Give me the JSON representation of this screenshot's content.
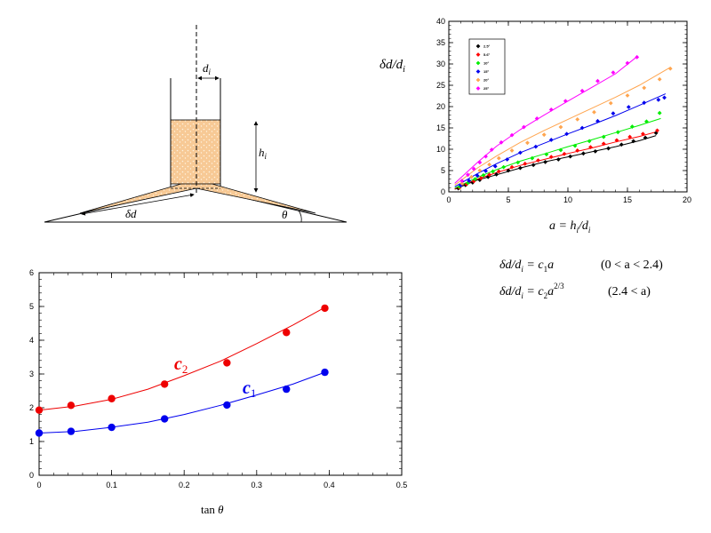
{
  "diagram": {
    "label_di": "d",
    "label_di_sub": "i",
    "label_hi": "h",
    "label_hi_sub": "i",
    "label_delta_d": "δd",
    "label_theta": "θ",
    "colors": {
      "fill": "#f7c995",
      "outline": "#000000",
      "axis": "#000000"
    }
  },
  "chart_data": [
    {
      "id": "right-chart",
      "type": "scatter",
      "ylabel_main": "δd/d",
      "ylabel_sub": "i",
      "xlabel_main": "a = h",
      "xlabel_sub1": "i",
      "xlabel_mid": "/d",
      "xlabel_sub2": "i",
      "xlim": [
        0,
        20
      ],
      "ylim": [
        0,
        40
      ],
      "xticks": [
        0,
        5,
        10,
        15,
        20
      ],
      "yticks": [
        0,
        5,
        10,
        15,
        20,
        25,
        30,
        35,
        40
      ],
      "legend_position": "top-left",
      "series": [
        {
          "name": "2.5°",
          "color": "#000000",
          "x": [
            0.8,
            1.4,
            2.0,
            2.6,
            3.3,
            4.0,
            5.0,
            6.0,
            7.1,
            8.1,
            9.2,
            10.2,
            11.3,
            12.3,
            13.4,
            14.5,
            15.5,
            16.5,
            17.4
          ],
          "y": [
            0.8,
            1.6,
            2.2,
            2.8,
            3.5,
            4.1,
            5.0,
            5.6,
            6.3,
            7.0,
            7.6,
            8.3,
            9.0,
            9.5,
            10.2,
            11.1,
            11.9,
            12.7,
            13.8
          ],
          "fit": [
            [
              0.5,
              0.6
            ],
            [
              2.4,
              2.8
            ],
            [
              4,
              4.0
            ],
            [
              6,
              5.6
            ],
            [
              8,
              7.0
            ],
            [
              10,
              8.2
            ],
            [
              12,
              9.4
            ],
            [
              14,
              10.6
            ],
            [
              16,
              12.0
            ],
            [
              17.4,
              13.2
            ]
          ]
        },
        {
          "name": "5.6°",
          "color": "#ff0000",
          "x": [
            0.9,
            1.5,
            2.1,
            2.7,
            3.4,
            4.2,
            5.3,
            6.4,
            7.5,
            8.6,
            9.7,
            10.8,
            11.9,
            13.0,
            14.1,
            15.2,
            16.3,
            17.5
          ],
          "y": [
            1.0,
            1.8,
            2.5,
            3.2,
            4.0,
            4.8,
            5.8,
            6.6,
            7.4,
            8.2,
            8.9,
            9.7,
            10.5,
            11.3,
            12.1,
            12.9,
            13.6,
            14.4
          ],
          "fit": [
            [
              0.5,
              0.7
            ],
            [
              2.4,
              3.0
            ],
            [
              4,
              4.5
            ],
            [
              6,
              6.2
            ],
            [
              8,
              7.6
            ],
            [
              10,
              9.0
            ],
            [
              12,
              10.3
            ],
            [
              14,
              11.7
            ],
            [
              16,
              13.0
            ],
            [
              17.6,
              14.2
            ]
          ]
        },
        {
          "name": "10°",
          "color": "#00ee00",
          "x": [
            0.9,
            1.6,
            2.2,
            2.9,
            3.7,
            4.6,
            5.8,
            7.0,
            8.2,
            9.4,
            10.6,
            11.8,
            13.0,
            14.2,
            15.4,
            16.6,
            17.7
          ],
          "y": [
            1.2,
            2.1,
            3.0,
            3.9,
            4.8,
            5.8,
            6.9,
            7.9,
            8.8,
            9.8,
            10.8,
            11.9,
            12.9,
            14.0,
            15.3,
            16.5,
            18.5
          ],
          "fit": [
            [
              0.5,
              0.9
            ],
            [
              2.4,
              3.4
            ],
            [
              4,
              5.2
            ],
            [
              6,
              7.2
            ],
            [
              8,
              8.9
            ],
            [
              10,
              10.6
            ],
            [
              12,
              12.2
            ],
            [
              14,
              13.9
            ],
            [
              16,
              15.6
            ],
            [
              17.8,
              17.2
            ]
          ]
        },
        {
          "name": "15°",
          "color": "#0000ee",
          "x": [
            1.0,
            1.7,
            2.4,
            3.1,
            3.9,
            4.9,
            6.0,
            7.3,
            8.6,
            9.9,
            11.2,
            12.5,
            13.8,
            15.1,
            16.4,
            17.6,
            18.1
          ],
          "y": [
            1.5,
            2.6,
            3.8,
            4.9,
            6.0,
            7.6,
            9.2,
            10.6,
            12.2,
            13.6,
            15.0,
            16.6,
            18.4,
            19.9,
            20.9,
            21.6,
            22.1
          ],
          "fit": [
            [
              0.5,
              1.2
            ],
            [
              2.4,
              4.3
            ],
            [
              4,
              6.6
            ],
            [
              6,
              9.2
            ],
            [
              8,
              11.4
            ],
            [
              10,
              13.6
            ],
            [
              12,
              15.7
            ],
            [
              14,
              17.9
            ],
            [
              16,
              20.3
            ],
            [
              18.2,
              23.0
            ]
          ]
        },
        {
          "name": "20°",
          "color": "#ffa54f",
          "x": [
            1.1,
            1.9,
            2.6,
            3.4,
            4.2,
            5.3,
            6.6,
            8.0,
            9.4,
            10.8,
            12.2,
            13.6,
            15.0,
            16.4,
            17.7,
            18.6
          ],
          "y": [
            2.0,
            3.5,
            5.0,
            6.4,
            7.9,
            9.7,
            11.5,
            13.4,
            15.2,
            17.0,
            18.7,
            20.8,
            22.6,
            24.4,
            26.4,
            28.9
          ],
          "fit": [
            [
              0.5,
              1.6
            ],
            [
              2.4,
              5.6
            ],
            [
              4,
              8.4
            ],
            [
              6,
              11.6
            ],
            [
              8,
              14.4
            ],
            [
              10,
              17.0
            ],
            [
              12,
              19.6
            ],
            [
              14,
              22.2
            ],
            [
              16,
              25.0
            ],
            [
              18.6,
              29.2
            ]
          ]
        },
        {
          "name": "25°",
          "color": "#ff00ff",
          "x": [
            1.1,
            1.6,
            2.1,
            2.6,
            3.1,
            3.6,
            4.4,
            5.3,
            6.3,
            7.4,
            8.6,
            9.8,
            11.2,
            12.5,
            13.8,
            15.0,
            15.8
          ],
          "y": [
            2.6,
            4.0,
            5.4,
            6.9,
            8.3,
            9.9,
            11.6,
            13.3,
            15.2,
            17.2,
            19.3,
            21.3,
            23.7,
            26.0,
            28.0,
            30.2,
            31.6
          ],
          "fit": [
            [
              0.5,
              2.0
            ],
            [
              2.4,
              6.9
            ],
            [
              4,
              10.7
            ],
            [
              6,
              14.6
            ],
            [
              8,
              18.0
            ],
            [
              10,
              21.3
            ],
            [
              12,
              24.5
            ],
            [
              14,
              27.7
            ],
            [
              15.8,
              31.7
            ]
          ]
        }
      ]
    },
    {
      "id": "left-chart",
      "type": "scatter",
      "xlabel_main": "tan ",
      "xlabel_theta": "θ",
      "xlim": [
        0,
        0.5
      ],
      "ylim": [
        0,
        6
      ],
      "xticks": [
        0,
        0.1,
        0.2,
        0.3,
        0.4,
        0.5
      ],
      "yticks": [
        0,
        1,
        2,
        3,
        4,
        5,
        6
      ],
      "series": [
        {
          "name": "c",
          "sub": "2",
          "color": "#ee0000",
          "x": [
            0,
            0.044,
            0.1,
            0.173,
            0.259,
            0.341,
            0.394
          ],
          "y": [
            1.93,
            2.07,
            2.27,
            2.7,
            3.33,
            4.23,
            4.95
          ],
          "fit": [
            [
              0,
              1.93
            ],
            [
              0.05,
              2.05
            ],
            [
              0.1,
              2.25
            ],
            [
              0.15,
              2.55
            ],
            [
              0.2,
              2.95
            ],
            [
              0.25,
              3.38
            ],
            [
              0.3,
              3.9
            ],
            [
              0.35,
              4.45
            ],
            [
              0.394,
              4.97
            ]
          ]
        },
        {
          "name": "c",
          "sub": "1",
          "color": "#0000ee",
          "x": [
            0,
            0.044,
            0.1,
            0.173,
            0.259,
            0.341,
            0.394
          ],
          "y": [
            1.25,
            1.3,
            1.42,
            1.67,
            2.08,
            2.55,
            3.05
          ],
          "fit": [
            [
              0,
              1.25
            ],
            [
              0.05,
              1.3
            ],
            [
              0.1,
              1.42
            ],
            [
              0.15,
              1.57
            ],
            [
              0.2,
              1.8
            ],
            [
              0.25,
              2.07
            ],
            [
              0.3,
              2.38
            ],
            [
              0.35,
              2.7
            ],
            [
              0.394,
              3.05
            ]
          ]
        }
      ]
    }
  ],
  "equations": {
    "eq1_lhs": "δd/d",
    "eq1_lhs_sub": "i",
    "eq1_eq": " = c",
    "eq1_c_sub": "1",
    "eq1_rhs": "a",
    "eq1_range": "(0 < a < 2.4)",
    "eq2_lhs": "δd/d",
    "eq2_lhs_sub": "i",
    "eq2_eq": " = c",
    "eq2_c_sub": "2",
    "eq2_rhs": "a",
    "eq2_exp": "2/3",
    "eq2_range": "(2.4 < a)"
  }
}
